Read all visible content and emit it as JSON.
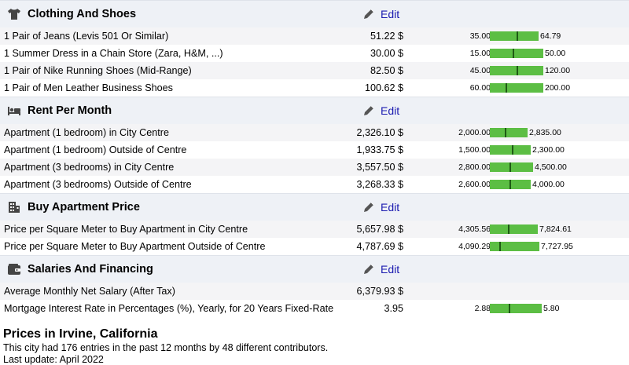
{
  "edit_label": "Edit",
  "bar_color": "#5cbe44",
  "marker_color": "#1e5a14",
  "sections": [
    {
      "title": "Clothing And Shoes",
      "icon": "shirt-icon",
      "rows": [
        {
          "name": "1 Pair of Jeans (Levis 501 Or Similar)",
          "price": "51.22 $",
          "low": "35.00",
          "high": "64.79",
          "low_val": 35.0,
          "high_val": 64.79,
          "avg_val": 51.22
        },
        {
          "name": "1 Summer Dress in a Chain Store (Zara, H&M, ...)",
          "price": "30.00 $",
          "low": "15.00",
          "high": "50.00",
          "low_val": 15.0,
          "high_val": 50.0,
          "avg_val": 30.0
        },
        {
          "name": "1 Pair of Nike Running Shoes (Mid-Range)",
          "price": "82.50 $",
          "low": "45.00",
          "high": "120.00",
          "low_val": 45.0,
          "high_val": 120.0,
          "avg_val": 82.5
        },
        {
          "name": "1 Pair of Men Leather Business Shoes",
          "price": "100.62 $",
          "low": "60.00",
          "high": "200.00",
          "low_val": 60.0,
          "high_val": 200.0,
          "avg_val": 100.62
        }
      ]
    },
    {
      "title": "Rent Per Month",
      "icon": "bed-icon",
      "rows": [
        {
          "name": "Apartment (1 bedroom) in City Centre",
          "price": "2,326.10 $",
          "low": "2,000.00",
          "high": "2,835.00",
          "low_val": 2000.0,
          "high_val": 2835.0,
          "avg_val": 2326.1
        },
        {
          "name": "Apartment (1 bedroom) Outside of Centre",
          "price": "1,933.75 $",
          "low": "1,500.00",
          "high": "2,300.00",
          "low_val": 1500.0,
          "high_val": 2300.0,
          "avg_val": 1933.75
        },
        {
          "name": "Apartment (3 bedrooms) in City Centre",
          "price": "3,557.50 $",
          "low": "2,800.00",
          "high": "4,500.00",
          "low_val": 2800.0,
          "high_val": 4500.0,
          "avg_val": 3557.5
        },
        {
          "name": "Apartment (3 bedrooms) Outside of Centre",
          "price": "3,268.33 $",
          "low": "2,600.00",
          "high": "4,000.00",
          "low_val": 2600.0,
          "high_val": 4000.0,
          "avg_val": 3268.33
        }
      ]
    },
    {
      "title": "Buy Apartment Price",
      "icon": "building-icon",
      "rows": [
        {
          "name": "Price per Square Meter to Buy Apartment in City Centre",
          "price": "5,657.98 $",
          "low": "4,305.56",
          "high": "7,824.61",
          "low_val": 4305.56,
          "high_val": 7824.61,
          "avg_val": 5657.98
        },
        {
          "name": "Price per Square Meter to Buy Apartment Outside of Centre",
          "price": "4,787.69 $",
          "low": "4,090.29",
          "high": "7,727.95",
          "low_val": 4090.29,
          "high_val": 7727.95,
          "avg_val": 4787.69
        }
      ]
    },
    {
      "title": "Salaries And Financing",
      "icon": "wallet-icon",
      "rows": [
        {
          "name": "Average Monthly Net Salary (After Tax)",
          "price": "6,379.93 $",
          "low": "",
          "high": ""
        },
        {
          "name": "Mortgage Interest Rate in Percentages (%), Yearly, for 20 Years Fixed-Rate",
          "price": "3.95",
          "low": "2.88",
          "high": "5.80",
          "low_val": 2.88,
          "high_val": 5.8,
          "avg_val": 3.95
        }
      ]
    }
  ],
  "footer": {
    "heading": "Prices in Irvine, California",
    "entries_text": "This city had 176 entries in the past 12 months by 48 different contributors.",
    "update_text": "Last update: April 2022"
  }
}
